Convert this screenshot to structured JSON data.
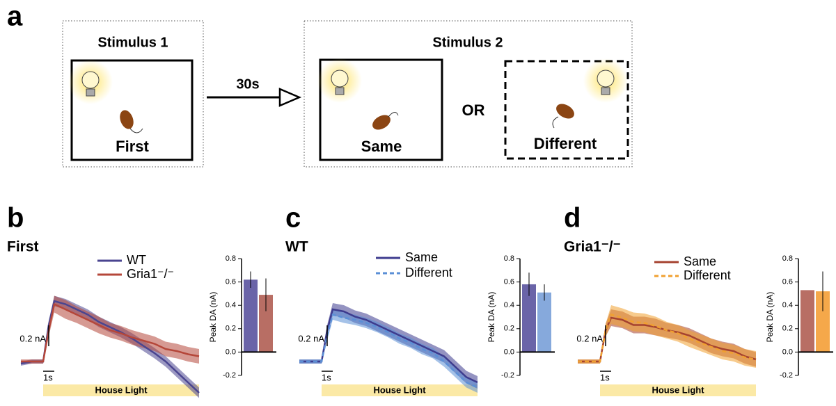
{
  "diagram": {
    "label": "a",
    "stimulus1": "Stimulus 1",
    "first": "First",
    "delay": "30s",
    "stimulus2": "Stimulus 2",
    "same": "Same",
    "or": "OR",
    "different": "Different"
  },
  "panels": [
    {
      "label": "b",
      "subtitle": "First",
      "color": "#777777"
    },
    {
      "label": "c",
      "subtitle": "WT",
      "color": "#3d3b8e"
    },
    {
      "label": "d",
      "subtitle": "Gria1⁻/⁻",
      "color": "#b5473a"
    }
  ],
  "chart_data": [
    {
      "type": "line",
      "x": [
        -2,
        -1,
        0,
        0.5,
        1,
        2,
        3,
        4,
        5,
        6,
        7,
        8,
        9,
        10,
        11,
        12,
        13,
        14
      ],
      "series": [
        {
          "name": "WT",
          "color": "#4a4590",
          "dashed": false,
          "values": [
            -0.02,
            0,
            0,
            0.35,
            0.58,
            0.55,
            0.5,
            0.45,
            0.38,
            0.33,
            0.28,
            0.22,
            0.15,
            0.08,
            0,
            -0.1,
            -0.2,
            -0.3
          ],
          "sem": [
            0.02,
            0.02,
            0.02,
            0.04,
            0.05,
            0.05,
            0.05,
            0.05,
            0.05,
            0.05,
            0.05,
            0.05,
            0.05,
            0.05,
            0.05,
            0.05,
            0.05,
            0.05
          ]
        },
        {
          "name": "Gria1⁻/⁻",
          "color": "#b5473a",
          "dashed": false,
          "values": [
            0,
            0,
            0,
            0.3,
            0.55,
            0.5,
            0.45,
            0.4,
            0.35,
            0.3,
            0.27,
            0.23,
            0.2,
            0.17,
            0.12,
            0.1,
            0.07,
            0.05
          ],
          "sem": [
            0.02,
            0.02,
            0.02,
            0.06,
            0.08,
            0.09,
            0.08,
            0.08,
            0.08,
            0.07,
            0.07,
            0.07,
            0.07,
            0.07,
            0.07,
            0.07,
            0.07,
            0.07
          ]
        }
      ],
      "yscale": {
        "value": 0.2,
        "label": "0.2 nA"
      },
      "xscale": {
        "value": 1,
        "label": "1s"
      },
      "stimulus": {
        "label": "House Light",
        "start": 0,
        "end": 14,
        "color": "#fbe9a6"
      }
    },
    {
      "type": "bar",
      "ylabel": "Peak DA (nA)",
      "values": [
        0.62,
        0.49
      ],
      "errors": [
        0.07,
        0.14
      ],
      "colors": [
        "#6a64a8",
        "#b86e64"
      ],
      "ylim": [
        -0.2,
        0.8
      ],
      "yticks": [
        -0.2,
        {
          "value": 0,
          "label": "0.0"
        },
        0.2,
        0.4,
        0.6,
        0.8
      ]
    },
    {
      "type": "line",
      "x": [
        -2,
        -1,
        0,
        0.5,
        1,
        2,
        3,
        4,
        5,
        6,
        7,
        8,
        9,
        10,
        11,
        12,
        13,
        14
      ],
      "series": [
        {
          "name": "Same",
          "color": "#3d3b8e",
          "dashed": false,
          "values": [
            0,
            0,
            0,
            0.3,
            0.5,
            0.48,
            0.43,
            0.4,
            0.35,
            0.3,
            0.25,
            0.2,
            0.15,
            0.1,
            0.05,
            -0.05,
            -0.15,
            -0.2
          ],
          "sem": [
            0.02,
            0.02,
            0.02,
            0.05,
            0.06,
            0.06,
            0.06,
            0.06,
            0.06,
            0.06,
            0.06,
            0.06,
            0.06,
            0.06,
            0.06,
            0.06,
            0.06,
            0.06
          ]
        },
        {
          "name": "Different",
          "color": "#5b8fd6",
          "dashed": true,
          "values": [
            0,
            0,
            0,
            0.25,
            0.45,
            0.42,
            0.4,
            0.37,
            0.33,
            0.28,
            0.22,
            0.18,
            0.12,
            0.08,
            0,
            -0.1,
            -0.2,
            -0.25
          ],
          "sem": [
            0.02,
            0.02,
            0.02,
            0.05,
            0.05,
            0.05,
            0.05,
            0.05,
            0.05,
            0.05,
            0.05,
            0.05,
            0.05,
            0.05,
            0.05,
            0.05,
            0.05,
            0.05
          ]
        }
      ],
      "yscale": {
        "value": 0.2,
        "label": "0.2 nA"
      },
      "xscale": {
        "value": 1,
        "label": "1s"
      },
      "stimulus": {
        "label": "House Light",
        "start": 0,
        "end": 14,
        "color": "#fbe9a6"
      }
    },
    {
      "type": "bar",
      "ylabel": "Peak DA (nA)",
      "values": [
        0.58,
        0.51
      ],
      "errors": [
        0.1,
        0.07
      ],
      "colors": [
        "#6a64a8",
        "#86a9dc"
      ],
      "ylim": [
        -0.2,
        0.8
      ],
      "yticks": [
        -0.2,
        {
          "value": 0,
          "label": "0.0"
        },
        0.2,
        0.4,
        0.6,
        0.8
      ]
    },
    {
      "type": "line",
      "x": [
        -2,
        -1,
        0,
        0.5,
        1,
        2,
        3,
        4,
        5,
        6,
        7,
        8,
        9,
        10,
        11,
        12,
        13,
        14
      ],
      "series": [
        {
          "name": "Same",
          "color": "#a5422f",
          "dashed": false,
          "values": [
            0,
            0,
            0,
            0.3,
            0.42,
            0.4,
            0.35,
            0.35,
            0.33,
            0.3,
            0.28,
            0.25,
            0.2,
            0.15,
            0.12,
            0.1,
            0.05,
            0.02
          ],
          "sem": [
            0.02,
            0.02,
            0.02,
            0.06,
            0.08,
            0.08,
            0.08,
            0.08,
            0.08,
            0.07,
            0.07,
            0.07,
            0.07,
            0.07,
            0.07,
            0.07,
            0.07,
            0.07
          ]
        },
        {
          "name": "Different",
          "color": "#f0a030",
          "dashed": true,
          "values": [
            0,
            0,
            0,
            0.3,
            0.45,
            0.42,
            0.38,
            0.37,
            0.34,
            0.3,
            0.27,
            0.22,
            0.18,
            0.14,
            0.1,
            0.08,
            0.04,
            0.02
          ],
          "sem": [
            0.02,
            0.02,
            0.02,
            0.06,
            0.09,
            0.09,
            0.09,
            0.09,
            0.09,
            0.08,
            0.08,
            0.08,
            0.08,
            0.08,
            0.08,
            0.08,
            0.08,
            0.08
          ]
        }
      ],
      "yscale": {
        "value": 0.2,
        "label": "0.2 nA"
      },
      "xscale": {
        "value": 1,
        "label": "1s"
      },
      "stimulus": {
        "label": "House Light",
        "start": 0,
        "end": 14,
        "color": "#fbe9a6"
      }
    },
    {
      "type": "bar",
      "ylabel": "Peak DA (nA)",
      "values": [
        0.53,
        0.52
      ],
      "errors": [
        0,
        0.17
      ],
      "colors": [
        "#b86e64",
        "#f5a84a"
      ],
      "ylim": [
        -0.2,
        0.8
      ],
      "yticks": [
        -0.2,
        {
          "value": 0,
          "label": "0.0"
        },
        0.2,
        0.4,
        0.6,
        0.8
      ]
    }
  ]
}
